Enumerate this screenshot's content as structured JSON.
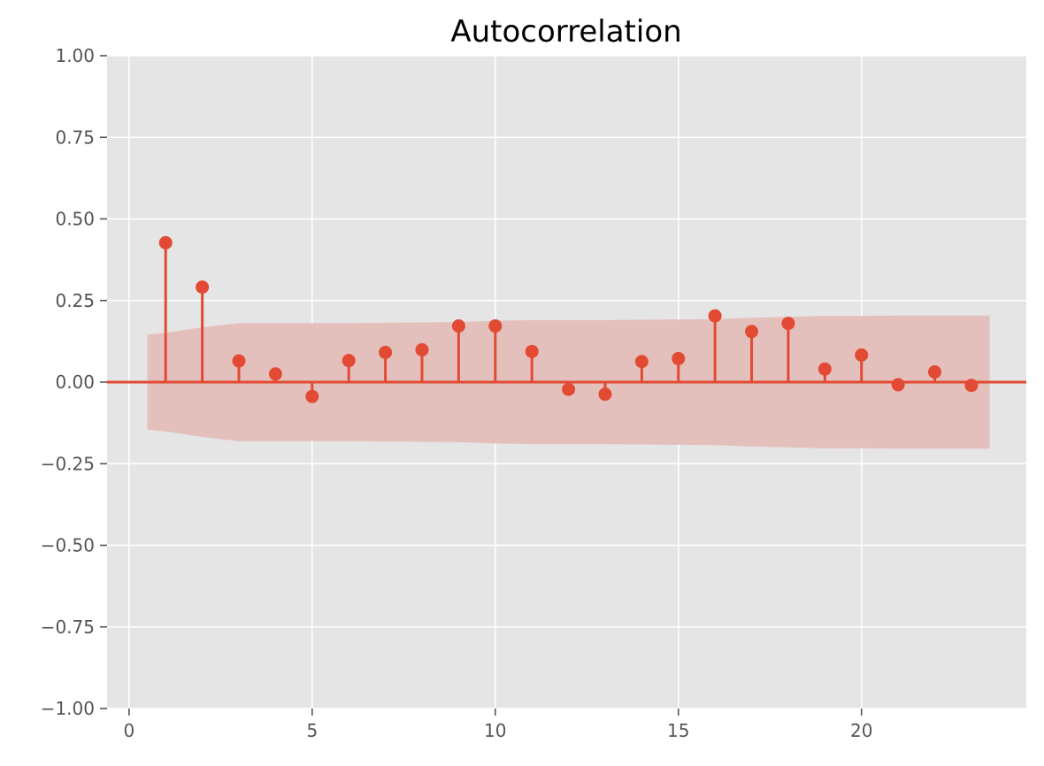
{
  "chart_data": {
    "type": "stem",
    "title": "Autocorrelation",
    "xlabel": "",
    "ylabel": "",
    "xlim": [
      -0.6,
      24.5
    ],
    "ylim": [
      -1.0,
      1.0
    ],
    "grid": true,
    "colors": {
      "background": "#e5e5e5",
      "grid": "#ffffff",
      "stem": "#e24a33",
      "confidence_band": "#e4c0bc"
    },
    "x_ticks": [
      0,
      5,
      10,
      15,
      20
    ],
    "x_tick_labels": [
      "0",
      "5",
      "10",
      "15",
      "20"
    ],
    "y_ticks": [
      1.0,
      0.75,
      0.5,
      0.25,
      0.0,
      -0.25,
      -0.5,
      -0.75,
      -1.0
    ],
    "y_tick_labels": [
      "1.00",
      "0.75",
      "0.50",
      "0.25",
      "0.00",
      "−0.25",
      "−0.50",
      "−0.75",
      "−1.00"
    ],
    "lags": [
      1,
      2,
      3,
      4,
      5,
      6,
      7,
      8,
      9,
      10,
      11,
      12,
      13,
      14,
      15,
      16,
      17,
      18,
      19,
      20,
      21,
      22,
      23
    ],
    "values": [
      0.427,
      0.291,
      0.065,
      0.025,
      -0.044,
      0.066,
      0.091,
      0.099,
      0.172,
      0.172,
      0.094,
      -0.022,
      -0.037,
      0.063,
      0.072,
      0.203,
      0.155,
      0.18,
      0.04,
      0.083,
      -0.008,
      0.031,
      -0.01
    ],
    "confidence_band": {
      "x": [
        0.5,
        1,
        2,
        3,
        4,
        5,
        6,
        7,
        8,
        9,
        10,
        11,
        12,
        13,
        14,
        15,
        16,
        17,
        18,
        19,
        20,
        21,
        22,
        23,
        23.5
      ],
      "upper": [
        0.146,
        0.151,
        0.168,
        0.181,
        0.181,
        0.181,
        0.181,
        0.182,
        0.183,
        0.184,
        0.188,
        0.19,
        0.19,
        0.19,
        0.191,
        0.192,
        0.193,
        0.197,
        0.2,
        0.203,
        0.203,
        0.204,
        0.204,
        0.204,
        0.204
      ]
    }
  }
}
